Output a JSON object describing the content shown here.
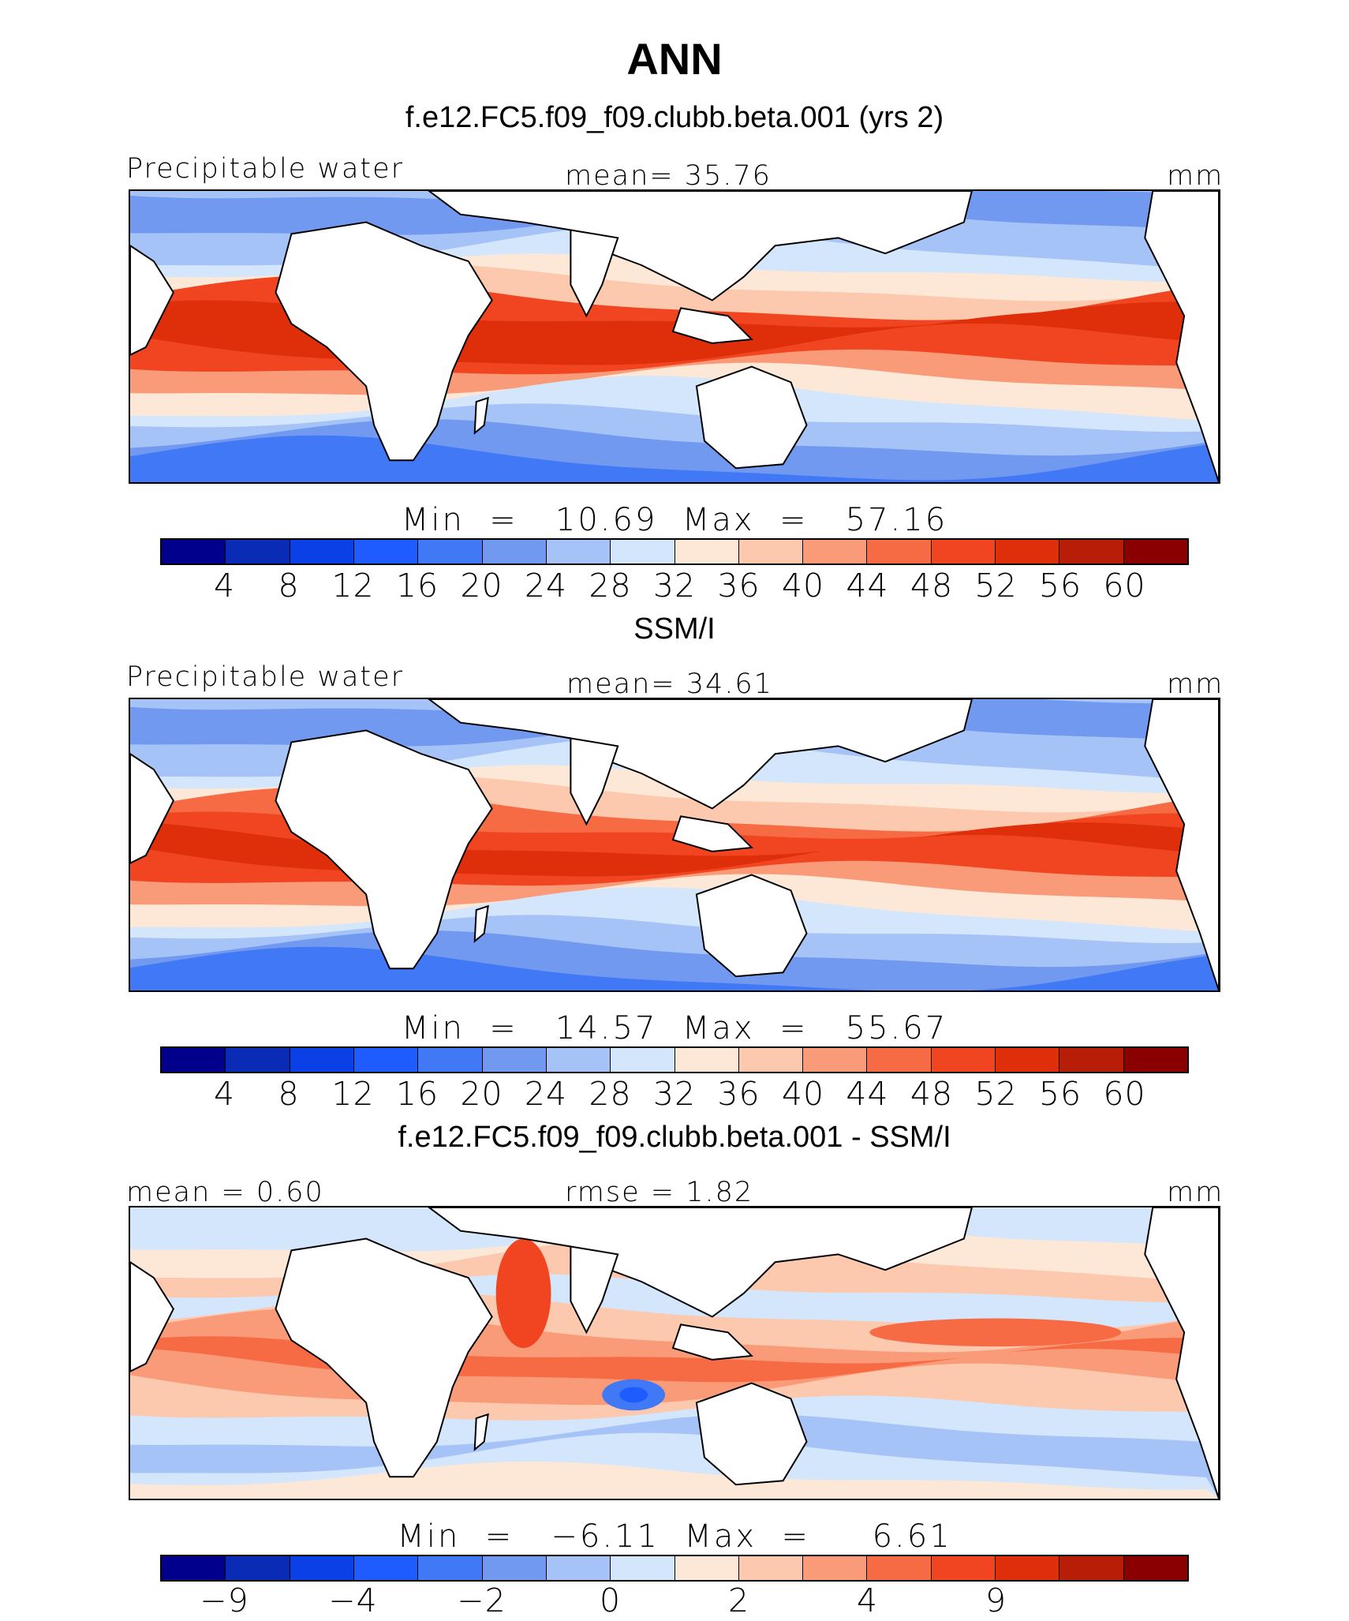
{
  "figure": {
    "title": "ANN"
  },
  "palette": {
    "colors": [
      "#00008c",
      "#0a2bb5",
      "#0a40e6",
      "#1e5cff",
      "#4078f5",
      "#7299f0",
      "#a6c3f7",
      "#d4e6fb",
      "#fde8d8",
      "#fcc9af",
      "#f99b78",
      "#f66b44",
      "#f04520",
      "#de2e0a",
      "#b81d08",
      "#8a0000"
    ]
  },
  "panels": [
    {
      "heading": "f.e12.FC5.f09_f09.clubb.beta.001 (yrs 2)",
      "left_label": "Precipitable water",
      "center_label": "mean=   35.76",
      "units": "mm",
      "stats": "Min  =   10.69  Max  =   57.16",
      "ticks": [
        "4",
        "8",
        "12",
        "16",
        "20",
        "24",
        "28",
        "32",
        "36",
        "40",
        "44",
        "48",
        "52",
        "56",
        "60"
      ],
      "field": "model"
    },
    {
      "heading": "SSM/I",
      "left_label": "Precipitable water",
      "center_label": "mean=   34.61",
      "units": "mm",
      "stats": "Min  =   14.57  Max  =   55.67",
      "ticks": [
        "4",
        "8",
        "12",
        "16",
        "20",
        "24",
        "28",
        "32",
        "36",
        "40",
        "44",
        "48",
        "52",
        "56",
        "60"
      ],
      "field": "obs"
    },
    {
      "heading": "f.e12.FC5.f09_f09.clubb.beta.001 - SSM/I",
      "left_label": "mean =    0.60",
      "center_label": "rmse  =    1.82",
      "units": "mm",
      "stats": "Min  =   −6.11  Max  =     6.61",
      "ticks": [
        "−9",
        "",
        "−4",
        "",
        "−2",
        "",
        "0",
        "",
        "2",
        "",
        "4",
        "",
        "9",
        "",
        ""
      ],
      "field": "diff"
    }
  ]
}
